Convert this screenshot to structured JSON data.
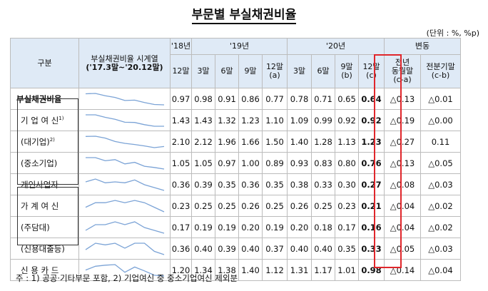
{
  "title": "부문별 부실채권비율",
  "unit": "(단위 : %, %p)",
  "headers": {
    "category": "구분",
    "series_line1": "부실채권비율 시계열",
    "series_line2": "('17.3말~'20.12말)",
    "y18": "'18년",
    "y19": "'19년",
    "y20": "'20년",
    "change": "변동",
    "col_18_12": "12말",
    "col_19_3": "3말",
    "col_19_6": "6말",
    "col_19_9": "9말",
    "col_19_12_a": "12말",
    "col_19_12_b": "(a)",
    "col_20_3": "3말",
    "col_20_6": "6말",
    "col_20_9_a": "9말",
    "col_20_9_b": "(b)",
    "col_20_12_a": "12말",
    "col_20_12_b": "(c)",
    "col_yoy_1": "전년",
    "col_yoy_2": "동월말",
    "col_yoy_3": "(c-a)",
    "col_qoq_1": "전분기말",
    "col_qoq_2": "(c-b)"
  },
  "rows": [
    {
      "label": "부실채권비율",
      "sup": "",
      "values": [
        "0.97",
        "0.98",
        "0.91",
        "0.86",
        "0.77",
        "0.78",
        "0.71",
        "0.65",
        "0.64"
      ],
      "yoy": "△0.13",
      "qoq": "△0.01"
    },
    {
      "label": "기 업 여 신",
      "sup": "1)",
      "values": [
        "1.43",
        "1.43",
        "1.32",
        "1.23",
        "1.10",
        "1.09",
        "0.99",
        "0.92",
        "0.92"
      ],
      "yoy": "△0.19",
      "qoq": "△0.00"
    },
    {
      "label": "(대기업)",
      "sup": "2)",
      "values": [
        "2.10",
        "2.12",
        "1.96",
        "1.66",
        "1.50",
        "1.40",
        "1.28",
        "1.13",
        "1.23"
      ],
      "yoy": "△0.27",
      "qoq": "0.11"
    },
    {
      "label": "(중소기업)",
      "sup": "",
      "values": [
        "1.05",
        "1.05",
        "0.97",
        "1.00",
        "0.89",
        "0.93",
        "0.83",
        "0.80",
        "0.76"
      ],
      "yoy": "△0.13",
      "qoq": "△0.05"
    },
    {
      "label": "개인사업자",
      "sup": "",
      "values": [
        "0.36",
        "0.39",
        "0.35",
        "0.36",
        "0.35",
        "0.38",
        "0.33",
        "0.30",
        "0.27"
      ],
      "yoy": "△0.08",
      "qoq": "△0.03"
    },
    {
      "label": "가 계 여 신",
      "sup": "",
      "values": [
        "0.23",
        "0.25",
        "0.25",
        "0.26",
        "0.25",
        "0.26",
        "0.25",
        "0.23",
        "0.21"
      ],
      "yoy": "△0.04",
      "qoq": "△0.02"
    },
    {
      "label": "(주담대)",
      "sup": "",
      "values": [
        "0.17",
        "0.19",
        "0.19",
        "0.20",
        "0.19",
        "0.20",
        "0.18",
        "0.17",
        "0.16"
      ],
      "yoy": "△0.04",
      "qoq": "△0.02"
    },
    {
      "label": "(신용대출등)",
      "sup": "",
      "values": [
        "0.36",
        "0.40",
        "0.39",
        "0.40",
        "0.37",
        "0.40",
        "0.40",
        "0.35",
        "0.33"
      ],
      "yoy": "△0.05",
      "qoq": "△0.03"
    },
    {
      "label": "신 용 카 드",
      "sup": "",
      "values": [
        "1.20",
        "1.34",
        "1.38",
        "1.40",
        "1.12",
        "1.31",
        "1.17",
        "1.01",
        "0.98"
      ],
      "yoy": "△0.14",
      "qoq": "△0.04"
    }
  ],
  "spark_color": "#7ba3d6",
  "highlight_color": "#e0262b",
  "note": "주 : 1) 공공·기타부문 포함, 2) 기업여신 중 중소기업여신 제외분"
}
